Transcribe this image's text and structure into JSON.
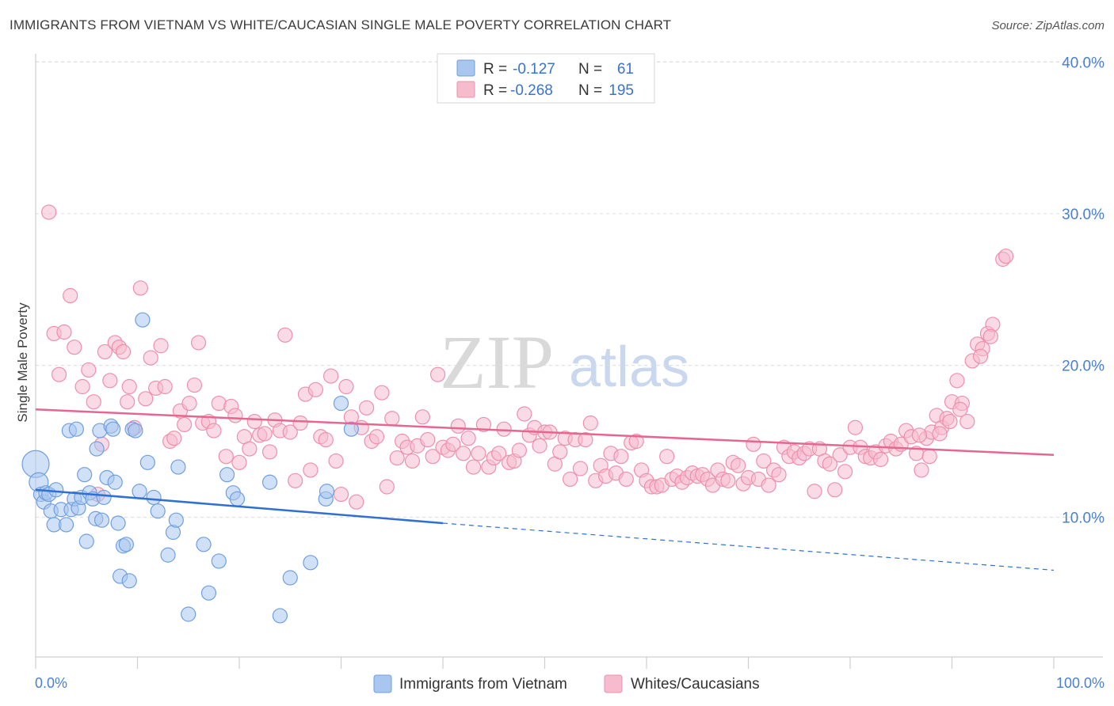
{
  "title": "IMMIGRANTS FROM VIETNAM VS WHITE/CAUCASIAN SINGLE MALE POVERTY CORRELATION CHART",
  "source": "Source: ZipAtlas.com",
  "watermark": {
    "zip": "ZIP",
    "atlas": "atlas"
  },
  "colors": {
    "blue_fill": "#a9c6ee",
    "blue_stroke": "#6f9fe0",
    "blue_line": "#2f70d0",
    "pink_fill": "#f6bccd",
    "pink_stroke": "#ee8fac",
    "pink_line": "#e5678f",
    "grid": "#dcdcdc",
    "axis_text": "#4a7fd1"
  },
  "legend": {
    "row1": {
      "r_label": "R =",
      "r_value": "-0.127",
      "n_label": "N =",
      "n_value": "61"
    },
    "row2": {
      "r_label": "R =",
      "r_value": "-0.268",
      "n_label": "N =",
      "n_value": "195"
    }
  },
  "bottom_legend": {
    "series1": "Immigrants from Vietnam",
    "series2": "Whites/Caucasians"
  },
  "chart_data": {
    "type": "scatter",
    "title": "IMMIGRANTS FROM VIETNAM VS WHITE/CAUCASIAN SINGLE MALE POVERTY CORRELATION CHART",
    "xlabel": "",
    "ylabel": "Single Male Poverty",
    "xlim": [
      0,
      100
    ],
    "ylim": [
      0,
      42
    ],
    "x_tick_labels": [
      "0.0%",
      "100.0%"
    ],
    "y_ticks": [
      10,
      20,
      30,
      40
    ],
    "y_tick_labels": [
      "10.0%",
      "20.0%",
      "30.0%",
      "40.0%"
    ],
    "series": [
      {
        "name": "Immigrants from Vietnam",
        "r": -0.127,
        "n": 61,
        "trend": {
          "x0": 0,
          "y0": 11.8,
          "x1": 40,
          "y1": 9.6,
          "dashed_to_x": 100,
          "dashed_to_y": 6.5
        },
        "points": [
          [
            0.0,
            13.5,
            "lg"
          ],
          [
            0.3,
            12.3,
            "md"
          ],
          [
            0.5,
            11.5
          ],
          [
            0.8,
            11.0
          ],
          [
            1.0,
            11.6
          ],
          [
            1.3,
            11.5
          ],
          [
            1.5,
            10.4
          ],
          [
            1.8,
            9.5
          ],
          [
            2.0,
            11.8
          ],
          [
            2.5,
            10.5
          ],
          [
            3.0,
            9.5
          ],
          [
            3.3,
            15.7
          ],
          [
            3.5,
            10.5
          ],
          [
            3.8,
            11.2
          ],
          [
            4.0,
            15.8
          ],
          [
            4.2,
            10.6
          ],
          [
            4.5,
            11.3
          ],
          [
            4.8,
            12.8
          ],
          [
            5.0,
            8.4
          ],
          [
            5.3,
            11.6
          ],
          [
            5.6,
            11.2
          ],
          [
            5.9,
            9.9
          ],
          [
            6.0,
            14.5
          ],
          [
            6.3,
            15.7
          ],
          [
            6.5,
            9.8
          ],
          [
            6.7,
            11.3
          ],
          [
            7.0,
            12.6
          ],
          [
            7.4,
            16.0
          ],
          [
            7.6,
            15.8
          ],
          [
            7.8,
            12.3
          ],
          [
            8.1,
            9.6
          ],
          [
            8.3,
            6.1
          ],
          [
            8.6,
            8.1
          ],
          [
            8.9,
            8.2
          ],
          [
            9.2,
            5.8
          ],
          [
            9.5,
            15.8
          ],
          [
            9.8,
            15.7
          ],
          [
            10.2,
            11.7
          ],
          [
            10.5,
            23.0
          ],
          [
            11.0,
            13.6
          ],
          [
            11.6,
            11.3
          ],
          [
            12.0,
            10.4
          ],
          [
            13.0,
            7.5
          ],
          [
            13.5,
            9.0
          ],
          [
            13.8,
            9.8
          ],
          [
            14.0,
            13.3
          ],
          [
            15.0,
            3.6
          ],
          [
            16.5,
            8.2
          ],
          [
            17.0,
            5.0
          ],
          [
            18.0,
            7.1
          ],
          [
            18.8,
            12.8
          ],
          [
            19.4,
            11.6
          ],
          [
            19.8,
            11.2
          ],
          [
            23.0,
            12.3
          ],
          [
            24.0,
            3.5
          ],
          [
            25.0,
            6.0
          ],
          [
            27.0,
            7.0
          ],
          [
            28.5,
            11.2
          ],
          [
            28.6,
            11.7
          ],
          [
            30.0,
            17.5
          ],
          [
            31.0,
            15.8
          ]
        ]
      },
      {
        "name": "Whites/Caucasians",
        "r": -0.268,
        "n": 195,
        "trend": {
          "x0": 0,
          "y0": 17.1,
          "x1": 100,
          "y1": 14.1
        },
        "points": [
          [
            1.3,
            30.1
          ],
          [
            1.8,
            22.1
          ],
          [
            2.3,
            19.4
          ],
          [
            2.8,
            22.2
          ],
          [
            3.4,
            24.6
          ],
          [
            3.8,
            21.2
          ],
          [
            4.6,
            18.6
          ],
          [
            5.2,
            19.7
          ],
          [
            5.7,
            17.6
          ],
          [
            6.1,
            11.5
          ],
          [
            6.5,
            14.8
          ],
          [
            6.8,
            20.9
          ],
          [
            7.3,
            19.0
          ],
          [
            7.8,
            21.5
          ],
          [
            8.2,
            21.2
          ],
          [
            8.6,
            20.9
          ],
          [
            9.0,
            17.6
          ],
          [
            9.2,
            18.6
          ],
          [
            9.7,
            15.9
          ],
          [
            10.3,
            25.1
          ],
          [
            10.8,
            17.8
          ],
          [
            11.3,
            20.5
          ],
          [
            11.8,
            18.5
          ],
          [
            12.3,
            21.3
          ],
          [
            12.7,
            18.6
          ],
          [
            13.2,
            15.0
          ],
          [
            13.6,
            15.2
          ],
          [
            14.2,
            17.0
          ],
          [
            14.6,
            16.1
          ],
          [
            15.1,
            17.5
          ],
          [
            15.6,
            18.7
          ],
          [
            16.0,
            21.5
          ],
          [
            16.4,
            16.2
          ],
          [
            17.0,
            16.3
          ],
          [
            17.5,
            15.7
          ],
          [
            18.0,
            17.5
          ],
          [
            18.7,
            14.0
          ],
          [
            19.2,
            17.3
          ],
          [
            19.6,
            16.7
          ],
          [
            20.0,
            13.6
          ],
          [
            20.5,
            15.3
          ],
          [
            21.0,
            14.5
          ],
          [
            21.5,
            16.3
          ],
          [
            22.0,
            15.4
          ],
          [
            22.5,
            15.5
          ],
          [
            23.0,
            14.3
          ],
          [
            23.5,
            16.4
          ],
          [
            24.0,
            15.7
          ],
          [
            24.5,
            22.0
          ],
          [
            25.0,
            15.6
          ],
          [
            25.5,
            12.4
          ],
          [
            26.0,
            16.2
          ],
          [
            26.5,
            18.1
          ],
          [
            27.0,
            13.1
          ],
          [
            27.5,
            18.4
          ],
          [
            28.0,
            15.3
          ],
          [
            28.5,
            15.1
          ],
          [
            29.0,
            19.3
          ],
          [
            29.5,
            13.7
          ],
          [
            30.0,
            11.5
          ],
          [
            30.5,
            18.6
          ],
          [
            31.0,
            16.6
          ],
          [
            31.5,
            11.0
          ],
          [
            32.0,
            15.9
          ],
          [
            32.5,
            17.2
          ],
          [
            33.0,
            15.0
          ],
          [
            33.5,
            15.3
          ],
          [
            34.0,
            18.2
          ],
          [
            34.5,
            12.0
          ],
          [
            35.0,
            16.5
          ],
          [
            35.5,
            13.9
          ],
          [
            36.0,
            15.0
          ],
          [
            36.5,
            14.6
          ],
          [
            37.0,
            13.7
          ],
          [
            37.5,
            14.7
          ],
          [
            38.0,
            16.6
          ],
          [
            38.5,
            15.1
          ],
          [
            39.0,
            14.0
          ],
          [
            39.5,
            19.4
          ],
          [
            40.0,
            14.6
          ],
          [
            40.5,
            14.4
          ],
          [
            41.0,
            14.8
          ],
          [
            41.5,
            16.0
          ],
          [
            42.0,
            14.2
          ],
          [
            42.5,
            15.2
          ],
          [
            43.0,
            13.3
          ],
          [
            43.5,
            14.2
          ],
          [
            44.0,
            16.1
          ],
          [
            44.5,
            13.3
          ],
          [
            45.0,
            13.9
          ],
          [
            45.5,
            14.2
          ],
          [
            46.0,
            15.8
          ],
          [
            46.5,
            13.6
          ],
          [
            47.0,
            13.7
          ],
          [
            47.5,
            14.4
          ],
          [
            48.0,
            16.8
          ],
          [
            48.5,
            15.4
          ],
          [
            49.0,
            15.9
          ],
          [
            49.5,
            14.7
          ],
          [
            50.0,
            15.6
          ],
          [
            50.5,
            15.6
          ],
          [
            51.0,
            13.5
          ],
          [
            51.5,
            14.3
          ],
          [
            52.0,
            15.2
          ],
          [
            52.5,
            12.5
          ],
          [
            53.0,
            15.1
          ],
          [
            53.5,
            13.2
          ],
          [
            54.0,
            15.1
          ],
          [
            54.5,
            16.2
          ],
          [
            55.0,
            12.4
          ],
          [
            55.5,
            13.4
          ],
          [
            56.0,
            12.7
          ],
          [
            56.5,
            14.2
          ],
          [
            57.0,
            12.9
          ],
          [
            57.5,
            14.0
          ],
          [
            58.0,
            12.5
          ],
          [
            58.5,
            14.9
          ],
          [
            59.0,
            15.0
          ],
          [
            59.5,
            13.1
          ],
          [
            60.0,
            12.4
          ],
          [
            60.5,
            12.0
          ],
          [
            61.0,
            12.0
          ],
          [
            61.5,
            12.1
          ],
          [
            62.0,
            14.0
          ],
          [
            62.5,
            12.5
          ],
          [
            63.0,
            12.7
          ],
          [
            63.5,
            12.3
          ],
          [
            64.0,
            12.6
          ],
          [
            64.5,
            12.9
          ],
          [
            65.0,
            12.7
          ],
          [
            65.5,
            12.8
          ],
          [
            66.0,
            12.5
          ],
          [
            66.5,
            12.1
          ],
          [
            67.0,
            13.1
          ],
          [
            67.5,
            12.5
          ],
          [
            68.0,
            12.4
          ],
          [
            68.5,
            13.6
          ],
          [
            69.0,
            13.4
          ],
          [
            69.5,
            12.2
          ],
          [
            70.0,
            12.6
          ],
          [
            70.5,
            14.8
          ],
          [
            71.0,
            12.5
          ],
          [
            71.5,
            13.7
          ],
          [
            72.0,
            12.1
          ],
          [
            72.5,
            13.1
          ],
          [
            73.0,
            12.8
          ],
          [
            73.5,
            14.6
          ],
          [
            74.0,
            14.0
          ],
          [
            74.5,
            14.3
          ],
          [
            75.0,
            13.9
          ],
          [
            75.5,
            14.2
          ],
          [
            76.0,
            14.5
          ],
          [
            76.5,
            11.7
          ],
          [
            77.0,
            14.5
          ],
          [
            77.5,
            13.7
          ],
          [
            78.0,
            13.5
          ],
          [
            78.5,
            11.8
          ],
          [
            79.0,
            14.1
          ],
          [
            79.5,
            13.0
          ],
          [
            80.0,
            14.6
          ],
          [
            80.5,
            15.9
          ],
          [
            81.0,
            14.6
          ],
          [
            81.5,
            14.0
          ],
          [
            82.0,
            13.9
          ],
          [
            82.5,
            14.3
          ],
          [
            83.0,
            13.8
          ],
          [
            83.5,
            14.7
          ],
          [
            84.0,
            15.0
          ],
          [
            84.5,
            14.5
          ],
          [
            85.0,
            14.8
          ],
          [
            85.5,
            15.7
          ],
          [
            86.0,
            15.3
          ],
          [
            86.5,
            14.2
          ],
          [
            87.0,
            13.1
          ],
          [
            87.5,
            15.2
          ],
          [
            88.0,
            15.6
          ],
          [
            88.5,
            16.7
          ],
          [
            89.0,
            15.9
          ],
          [
            89.5,
            16.5
          ],
          [
            90.0,
            17.6
          ],
          [
            90.5,
            19.0
          ],
          [
            91.0,
            17.5
          ],
          [
            92.0,
            20.3
          ],
          [
            92.5,
            21.4
          ],
          [
            93.0,
            21.1
          ],
          [
            93.5,
            22.1
          ],
          [
            94.0,
            22.7
          ],
          [
            95.0,
            27.0
          ],
          [
            95.3,
            27.2
          ],
          [
            93.8,
            21.9
          ],
          [
            92.8,
            20.6
          ],
          [
            91.5,
            16.3
          ],
          [
            90.8,
            17.1
          ],
          [
            89.8,
            16.3
          ],
          [
            88.8,
            15.5
          ],
          [
            87.8,
            14.0
          ],
          [
            86.8,
            15.4
          ]
        ]
      }
    ]
  }
}
